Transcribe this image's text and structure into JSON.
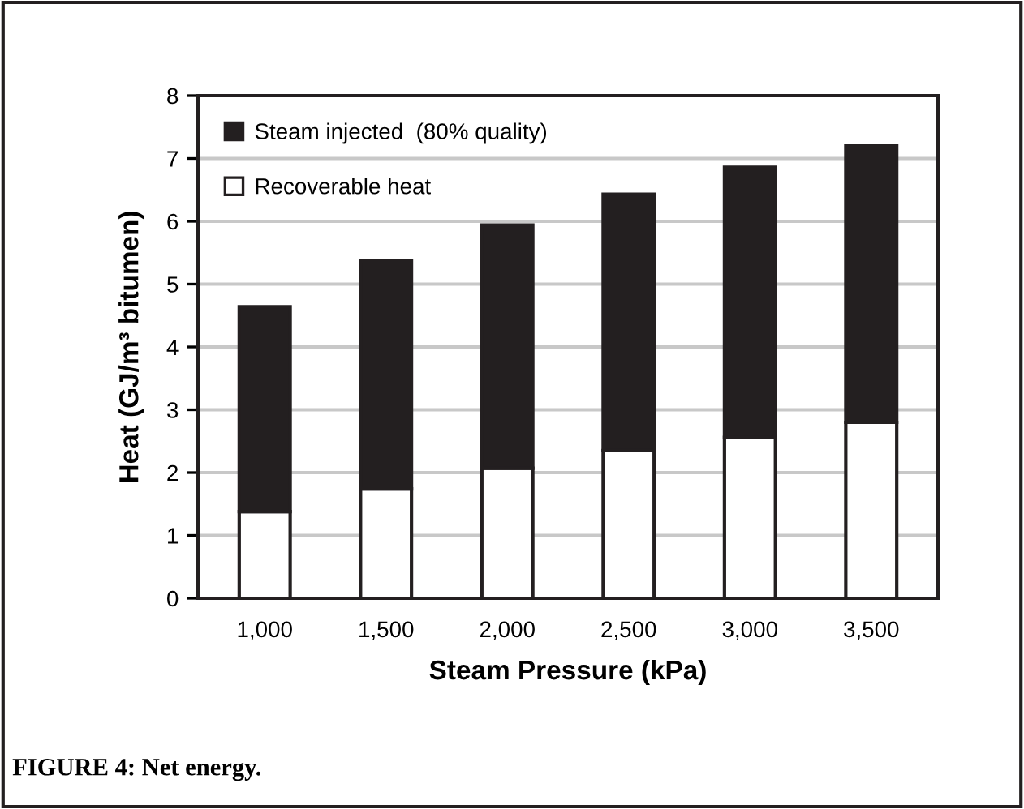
{
  "chart_data": {
    "type": "bar",
    "stacked": true,
    "xlabel": "Steam Pressure (kPa)",
    "ylabel": "Heat (GJ/m³ bitumen)",
    "categories": [
      "1,000",
      "1,500",
      "2,000",
      "2,500",
      "3,000",
      "3,500"
    ],
    "series": [
      {
        "name": "Recoverable heat",
        "color": "#ffffff",
        "values": [
          1.38,
          1.74,
          2.07,
          2.35,
          2.56,
          2.8
        ]
      },
      {
        "name": "Steam injected  (80% quality)",
        "color": "#231f20",
        "values": [
          3.26,
          3.63,
          3.87,
          4.08,
          4.3,
          4.4
        ]
      }
    ],
    "ylim": [
      0,
      8
    ],
    "yticks": [
      0,
      1,
      2,
      3,
      4,
      5,
      6,
      7,
      8
    ],
    "grid": "y",
    "legend": "top left",
    "annotations": [
      "FIGURE 4: Net energy."
    ]
  }
}
